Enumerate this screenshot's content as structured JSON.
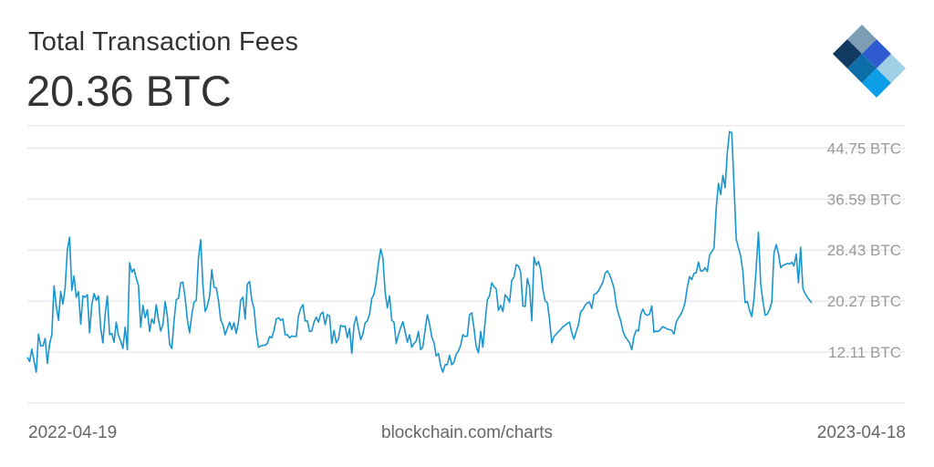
{
  "header": {
    "title": "Total Transaction Fees",
    "current_value": "20.36 BTC"
  },
  "footer": {
    "start_date": "2022-04-19",
    "source": "blockchain.com/charts",
    "end_date": "2023-04-18"
  },
  "colors": {
    "line": "#1a96cf",
    "grid": "#e0e0e0",
    "text": "#333333",
    "tick": "#999999"
  },
  "logo": {
    "name": "blockchain-logo",
    "colors": [
      "#123962",
      "#7d9db5",
      "#2f5bd1",
      "#9fd0e6",
      "#0c9ee6"
    ]
  },
  "chart_data": {
    "type": "line",
    "xlabel": "",
    "ylabel": "",
    "x_start": "2022-04-19",
    "x_end": "2023-04-18",
    "ylim": [
      3.95,
      48.3
    ],
    "yticks": [
      {
        "value": 12.11,
        "label": "12.11 BTC"
      },
      {
        "value": 20.27,
        "label": "20.27 BTC"
      },
      {
        "value": 28.43,
        "label": "28.43 BTC"
      },
      {
        "value": 36.59,
        "label": "36.59 BTC"
      },
      {
        "value": 44.75,
        "label": "44.75 BTC"
      }
    ],
    "grid": true,
    "series": [
      {
        "values": [
          11.3,
          10.6,
          12.6,
          10.7,
          8.9,
          15.0,
          13.1,
          13.1,
          14.3,
          10.3,
          13.4,
          14.9,
          22.7,
          19.5,
          17.2,
          21.8,
          19.8,
          22.4,
          28.5,
          30.5,
          22.0,
          24.3,
          20.9,
          21.8,
          16.6,
          21.1,
          20.9,
          21.3,
          15.2,
          19.7,
          21.5,
          20.4,
          21.1,
          15.9,
          13.6,
          18.1,
          21.1,
          14.9,
          15.1,
          13.7,
          16.9,
          14.8,
          13.9,
          12.7,
          16.1,
          12.5,
          26.4,
          24.9,
          25.4,
          23.9,
          22.8,
          16.1,
          19.6,
          17.6,
          18.9,
          15.4,
          17.4,
          16.7,
          19.7,
          17.3,
          15.5,
          16.5,
          20.2,
          17.9,
          13.4,
          12.7,
          17.1,
          20.5,
          20.7,
          23.2,
          23.3,
          20.8,
          17.3,
          15.2,
          18.1,
          20.1,
          20.4,
          27.1,
          30.1,
          22.8,
          18.6,
          19.5,
          21.0,
          25.3,
          22.5,
          22.4,
          20.4,
          17.3,
          16.5,
          14.9,
          15.9,
          16.9,
          15.7,
          16.8,
          15.1,
          16.9,
          20.4,
          20.9,
          17.4,
          23.0,
          23.4,
          20.4,
          19.1,
          15.3,
          12.9,
          13.1,
          13.2,
          13.2,
          13.5,
          14.6,
          14.4,
          15.6,
          17.4,
          17.6,
          17.2,
          17.4,
          14.9,
          14.9,
          14.4,
          14.7,
          14.6,
          14.6,
          17.9,
          19.1,
          19.7,
          17.1,
          17.1,
          15.4,
          15.5,
          16.9,
          17.7,
          16.9,
          18.2,
          18.5,
          16.5,
          18.1,
          17.9,
          13.5,
          15.6,
          13.6,
          14.2,
          16.4,
          16.2,
          16.3,
          14.4,
          15.9,
          11.9,
          16.4,
          17.8,
          15.9,
          14.1,
          15.0,
          16.8,
          17.1,
          18.2,
          20.7,
          21.4,
          23.4,
          26.3,
          28.6,
          27.2,
          21.7,
          19.2,
          21.1,
          17.2,
          16.9,
          13.5,
          14.9,
          16.0,
          17.0,
          15.4,
          13.7,
          14.9,
          12.9,
          13.5,
          13.9,
          15.4,
          12.5,
          13.0,
          15.7,
          18.1,
          16.6,
          14.5,
          13.6,
          11.5,
          11.9,
          9.9,
          8.9,
          10.1,
          10.1,
          11.6,
          10.1,
          10.5,
          11.8,
          12.3,
          13.2,
          14.9,
          14.6,
          14.7,
          18.1,
          18.4,
          15.9,
          13.0,
          12.0,
          15.4,
          12.9,
          17.0,
          20.5,
          21.1,
          23.2,
          22.6,
          22.2,
          18.8,
          19.6,
          18.6,
          21.3,
          20.8,
          20.1,
          23.6,
          24.1,
          26.1,
          25.9,
          24.9,
          19.5,
          19.4,
          23.9,
          22.5,
          17.1,
          27.3,
          26.0,
          26.6,
          25.3,
          22.1,
          20.3,
          20.0,
          17.3,
          13.6,
          14.6,
          15.0,
          15.4,
          15.7,
          16.2,
          16.4,
          16.7,
          16.9,
          15.2,
          14.2,
          15.4,
          16.5,
          18.6,
          18.9,
          19.6,
          20.0,
          20.1,
          19.1,
          21.3,
          21.5,
          21.9,
          22.6,
          23.3,
          24.7,
          25.1,
          24.5,
          23.5,
          22.4,
          19.7,
          18.2,
          17.2,
          15.5,
          14.6,
          14.1,
          13.6,
          12.5,
          14.6,
          15.6,
          15.5,
          18.1,
          19.0,
          18.2,
          18.0,
          18.2,
          19.5,
          15.3,
          15.5,
          15.4,
          15.8,
          16.2,
          16.0,
          15.8,
          15.7,
          15.6,
          15.0,
          16.9,
          17.6,
          18.1,
          18.9,
          20.1,
          22.5,
          24.2,
          23.7,
          24.7,
          24.8,
          26.5,
          25.1,
          25.1,
          25.6,
          25.0,
          27.6,
          28.2,
          28.7,
          35.2,
          39.1,
          37.3,
          40.4,
          38.4,
          44.1,
          47.4,
          47.2,
          38.9,
          30.2,
          28.8,
          27.5,
          25.0,
          20.0,
          20.2,
          18.8,
          17.8,
          20.6,
          25.6,
          31.3,
          23.1,
          20.3,
          18.0,
          18.2,
          18.9,
          20.1,
          28.0,
          29.3,
          27.9,
          25.6,
          26.0,
          26.1,
          26.3,
          26.2,
          26.5,
          25.9,
          27.8,
          23.2,
          28.9,
          22.3,
          21.5,
          20.9,
          20.4,
          20.0
        ]
      }
    ]
  }
}
